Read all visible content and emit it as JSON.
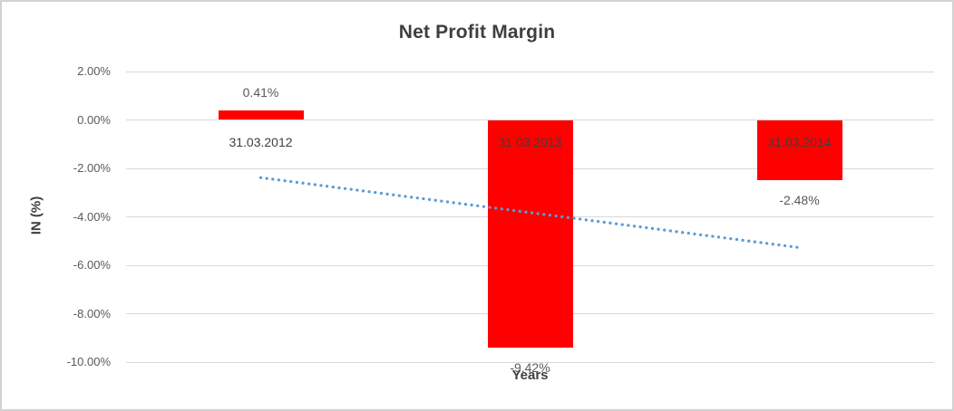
{
  "chart": {
    "title": "Net Profit Margin",
    "y_axis_title": "IN (%)",
    "x_axis_title": "Years"
  },
  "chart_data": {
    "type": "bar",
    "title": "Net Profit Margin",
    "xlabel": "Years",
    "ylabel": "IN (%)",
    "categories": [
      "31.03.2012",
      "31.03.2013",
      "31.03.2014"
    ],
    "values": [
      0.41,
      -9.42,
      -2.48
    ],
    "data_labels": [
      "0.41%",
      "-9.42%",
      "-2.48%"
    ],
    "y_ticks": [
      "2.00%",
      "0.00%",
      "-2.00%",
      "-4.00%",
      "-6.00%",
      "-8.00%",
      "-10.00%"
    ],
    "y_tick_values": [
      2,
      0,
      -2,
      -4,
      -6,
      -8,
      -10
    ],
    "ylim": [
      -10,
      2
    ],
    "grid": true,
    "legend": "none",
    "bar_color": "#ff0000",
    "gridline_color": "#d9d9d9",
    "label_color": "#595959",
    "category_label_color": "#3f3f3f",
    "trendline": {
      "style": "dotted",
      "color": "#5b9bd5",
      "start_value": -2.38,
      "end_value": -5.27
    }
  }
}
